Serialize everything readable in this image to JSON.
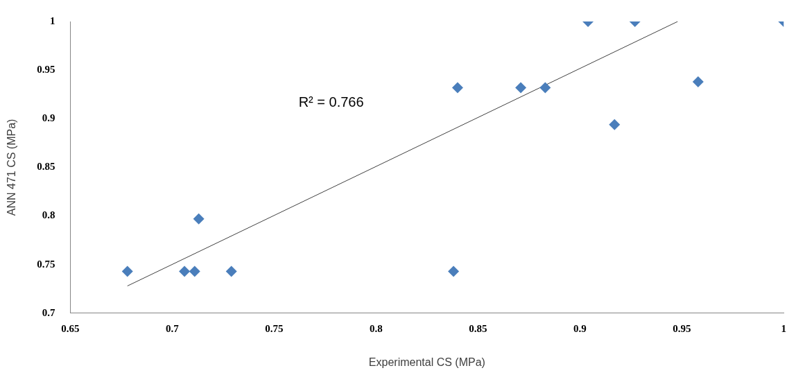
{
  "chart_data": {
    "type": "scatter",
    "xlabel": "Experimental CS (MPa)",
    "ylabel": "ANN 471 CS (MPa)",
    "xlim": [
      0.65,
      1
    ],
    "xticks": [
      0.65,
      0.7,
      0.75,
      0.8,
      0.85,
      0.9,
      0.95,
      1
    ],
    "ylim": [
      0.7,
      1
    ],
    "yticks": [
      0.7,
      0.75,
      0.8,
      0.85,
      0.9,
      0.95,
      1
    ],
    "grid": false,
    "legend": false,
    "annotations": [
      "R² = 0.766"
    ],
    "series": [
      {
        "color": "#4a7ebb",
        "marker": "diamond",
        "x": [
          0.678,
          0.706,
          0.711,
          0.713,
          0.729,
          0.838,
          0.84,
          0.871,
          0.883,
          0.904,
          0.917,
          0.927,
          0.958,
          1
        ],
        "values": [
          0.743,
          0.743,
          0.743,
          0.797,
          0.743,
          0.743,
          0.932,
          0.932,
          0.932,
          1,
          0.894,
          1,
          0.938,
          1
        ]
      },
      {
        "type": "line",
        "color": "#404040",
        "marker": "none",
        "line_style": "solid",
        "x": [
          0.678,
          0.948
        ],
        "values": [
          0.728,
          1
        ]
      }
    ]
  }
}
